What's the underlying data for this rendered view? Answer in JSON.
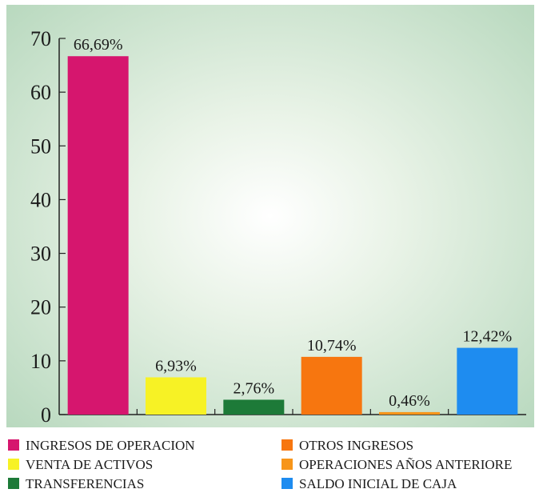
{
  "chart_data": {
    "type": "bar",
    "title": "",
    "xlabel": "",
    "ylabel": "",
    "ylim": [
      0,
      70
    ],
    "yticks": [
      0,
      10,
      20,
      30,
      40,
      50,
      60,
      70
    ],
    "grid": false,
    "legend_placement": "bottom",
    "categories": [
      "INGRESOS DE OPERACION",
      "VENTA DE ACTIVOS",
      "TRANSFERENCIAS",
      "OTROS INGRESOS",
      "OPERACIONES AÑOS ANTERIORE",
      "SALDO INICIAL DE CAJA"
    ],
    "values": [
      66.69,
      6.93,
      2.76,
      10.74,
      0.46,
      12.42
    ],
    "data_labels": [
      "66,69%",
      "6,93%",
      "2,76%",
      "10,74%",
      "0,46%",
      "12,42%"
    ],
    "colors": [
      "#d6166e",
      "#f7f225",
      "#1d7a38",
      "#f7760f",
      "#f7951a",
      "#1e8cf0"
    ]
  }
}
